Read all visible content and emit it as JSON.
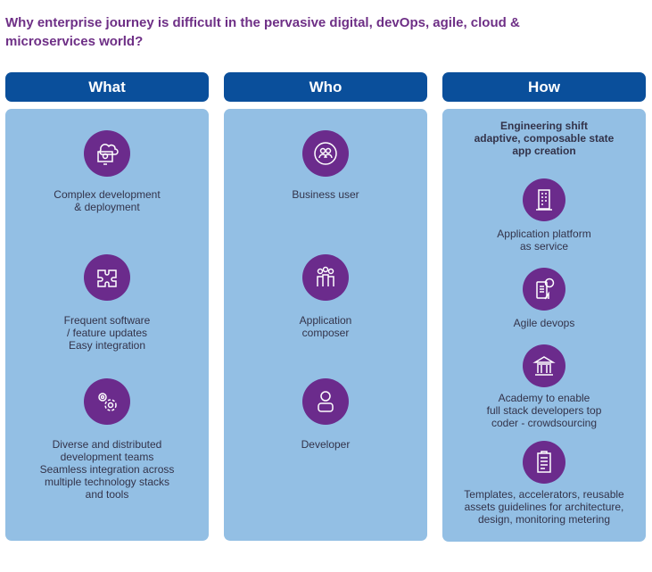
{
  "title": "Why enterprise journey is difficult in the pervasive digital, devOps, agile, cloud & microservices world?",
  "columns": [
    {
      "header": "What",
      "items": [
        {
          "icon": "cloud-monitor-icon",
          "lines": [
            "Complex development",
            "& deployment"
          ]
        },
        {
          "icon": "puzzle-icon",
          "lines": [
            "Frequent software",
            "/ feature updates",
            "Easy integration"
          ]
        },
        {
          "icon": "gears-icon",
          "lines": [
            "Diverse and distributed",
            "development teams",
            "Seamless integration across",
            "multiple technology stacks",
            "and tools"
          ]
        }
      ]
    },
    {
      "header": "Who",
      "items": [
        {
          "icon": "business-user-icon",
          "lines": [
            "Business user"
          ]
        },
        {
          "icon": "team-icon",
          "lines": [
            "Application",
            "composer"
          ]
        },
        {
          "icon": "developer-icon",
          "lines": [
            "Developer"
          ]
        }
      ]
    },
    {
      "header": "How",
      "subtitle": [
        "Engineering shift",
        "adaptive, composable state",
        "app creation"
      ],
      "items": [
        {
          "icon": "building-icon",
          "lines": [
            "Application platform",
            "as service"
          ]
        },
        {
          "icon": "mobile-payment-icon",
          "lines": [
            "Agile devops"
          ]
        },
        {
          "icon": "academy-icon",
          "lines": [
            "Academy to enable",
            "full stack developers top",
            "coder - crowdsourcing"
          ]
        },
        {
          "icon": "clipboard-icon",
          "lines": [
            "Templates, accelerators, reusable",
            "assets guidelines for architecture,",
            "design, monitoring metering"
          ]
        }
      ]
    }
  ],
  "colors": {
    "title": "#6e2f86",
    "header": "#0a4f9b",
    "panel": "#93bfe4",
    "icon": "#6b2b8c"
  }
}
